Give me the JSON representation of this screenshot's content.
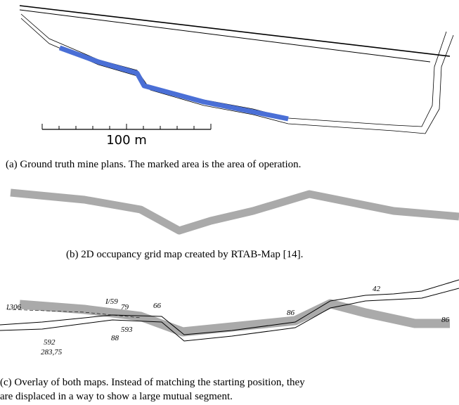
{
  "figure": {
    "panel_a": {
      "scale_label": "100 m",
      "caption": "(a) Ground truth mine plans. The marked area is the area of operation."
    },
    "panel_b": {
      "caption": "(b) 2D occupancy grid map created by RTAB-Map [14]."
    },
    "panel_c": {
      "annotations": [
        "1306",
        "592",
        "283,75",
        "I/59",
        "79",
        "593",
        "88",
        "66",
        "86",
        "42",
        "86"
      ],
      "caption_line_1": "(c) Overlay of both maps. Instead of matching the starting position, they",
      "caption_line_2": "are displaced in a way to show a large mutual segment."
    }
  }
}
